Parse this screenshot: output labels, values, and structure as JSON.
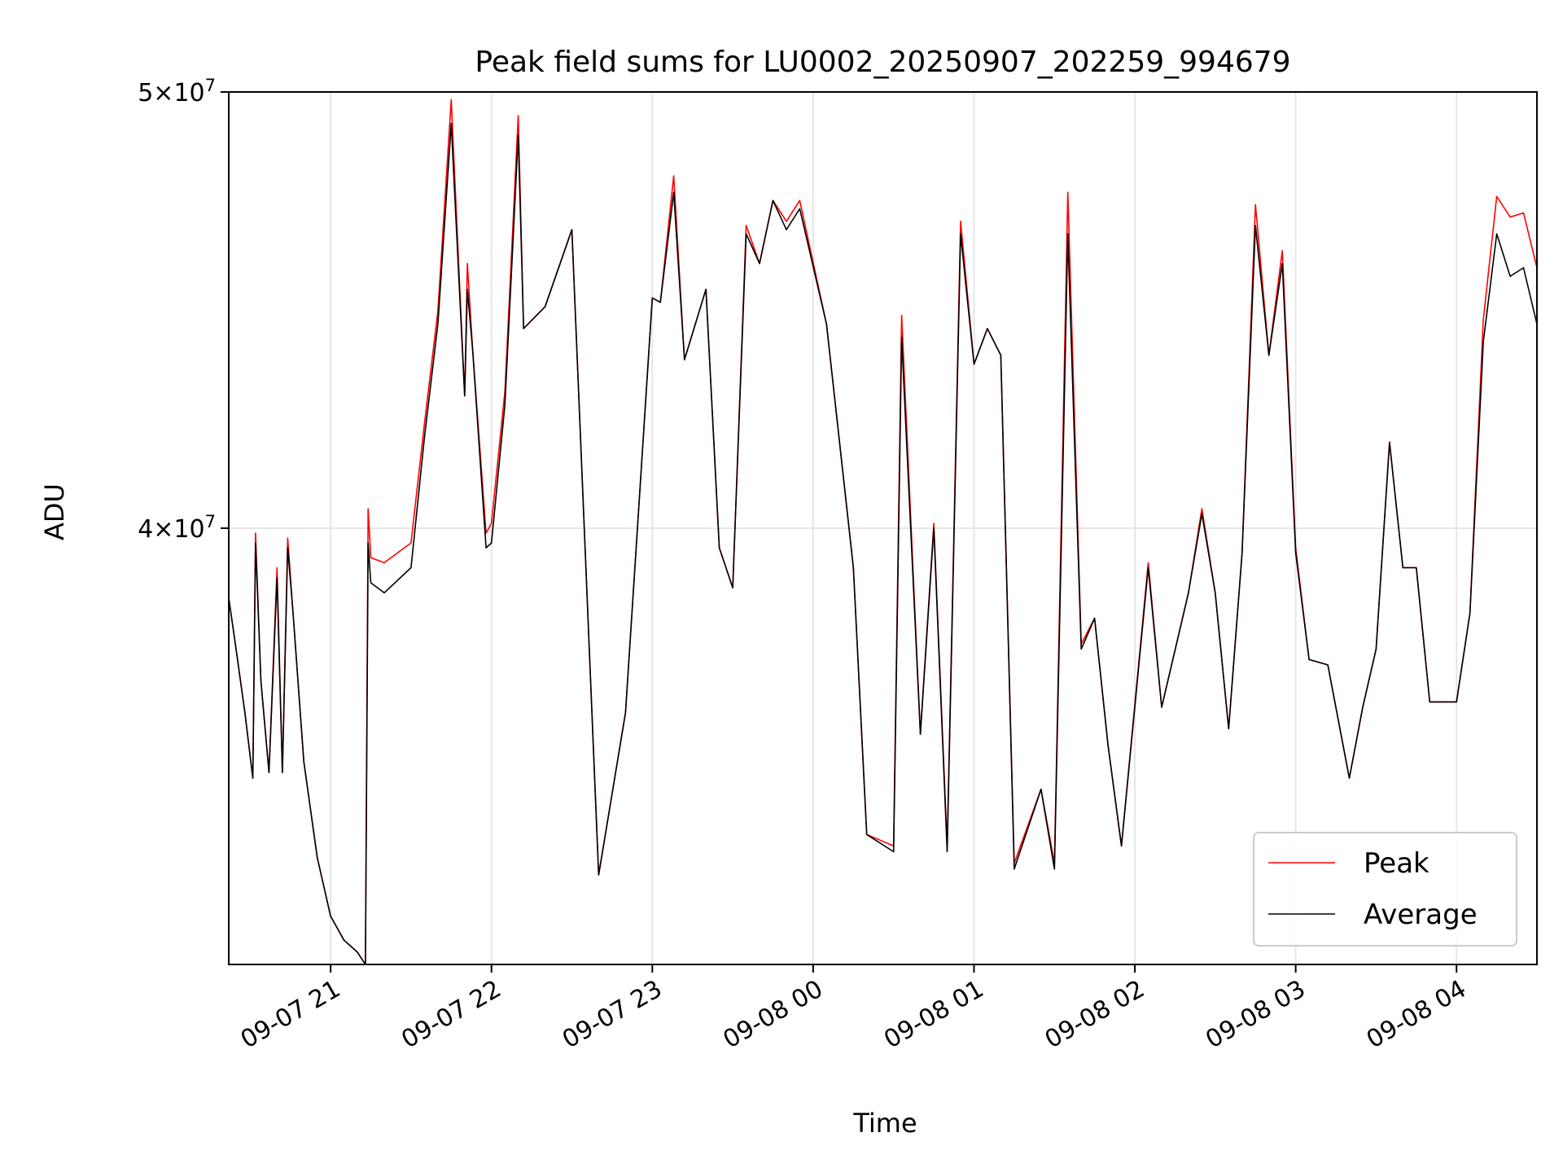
{
  "chart_data": {
    "type": "line",
    "title": "Peak field sums for LU0002_20250907_202259_994679",
    "xlabel": "Time",
    "ylabel": "ADU",
    "x_axis_type": "datetime",
    "xlim": [
      "2025-09-07 20:22",
      "2025-09-08 04:30"
    ],
    "ylim": [
      32000000,
      50000000
    ],
    "yscale": "log",
    "grid": true,
    "legend_position": "lower-right",
    "x_ticks": [
      "09-07 21",
      "09-07 22",
      "09-07 23",
      "09-08 00",
      "09-08 01",
      "09-08 02",
      "09-08 03",
      "09-08 04"
    ],
    "y_ticks": [
      {
        "value": 40000000,
        "mantissa": "4",
        "exponent": "7"
      },
      {
        "value": 50000000,
        "mantissa": "5",
        "exponent": "7"
      }
    ],
    "series": [
      {
        "name": "Peak",
        "color": "#ff0000",
        "x": [
          "2025-09-07 20:22",
          "2025-09-07 20:25",
          "2025-09-07 20:28",
          "2025-09-07 20:31",
          "2025-09-07 20:32",
          "2025-09-07 20:34",
          "2025-09-07 20:37",
          "2025-09-07 20:40",
          "2025-09-07 20:42",
          "2025-09-07 20:44",
          "2025-09-07 20:46",
          "2025-09-07 20:50",
          "2025-09-07 20:55",
          "2025-09-07 21:00",
          "2025-09-07 21:05",
          "2025-09-07 21:10",
          "2025-09-07 21:13",
          "2025-09-07 21:14",
          "2025-09-07 21:15",
          "2025-09-07 21:20",
          "2025-09-07 21:30",
          "2025-09-07 21:35",
          "2025-09-07 21:40",
          "2025-09-07 21:45",
          "2025-09-07 21:50",
          "2025-09-07 21:51",
          "2025-09-07 21:53",
          "2025-09-07 21:58",
          "2025-09-07 22:00",
          "2025-09-07 22:05",
          "2025-09-07 22:10",
          "2025-09-07 22:12",
          "2025-09-07 22:20",
          "2025-09-07 22:30",
          "2025-09-07 22:40",
          "2025-09-07 22:50",
          "2025-09-07 23:00",
          "2025-09-07 23:03",
          "2025-09-07 23:08",
          "2025-09-07 23:12",
          "2025-09-07 23:20",
          "2025-09-07 23:25",
          "2025-09-07 23:30",
          "2025-09-07 23:35",
          "2025-09-07 23:40",
          "2025-09-07 23:45",
          "2025-09-07 23:50",
          "2025-09-07 23:55",
          "2025-09-08 00:05",
          "2025-09-08 00:15",
          "2025-09-08 00:20",
          "2025-09-08 00:30",
          "2025-09-08 00:33",
          "2025-09-08 00:40",
          "2025-09-08 00:45",
          "2025-09-08 00:50",
          "2025-09-08 00:55",
          "2025-09-08 01:00",
          "2025-09-08 01:05",
          "2025-09-08 01:10",
          "2025-09-08 01:15",
          "2025-09-08 01:25",
          "2025-09-08 01:30",
          "2025-09-08 01:35",
          "2025-09-08 01:40",
          "2025-09-08 01:45",
          "2025-09-08 01:50",
          "2025-09-08 01:55",
          "2025-09-08 02:05",
          "2025-09-08 02:10",
          "2025-09-08 02:20",
          "2025-09-08 02:25",
          "2025-09-08 02:30",
          "2025-09-08 02:35",
          "2025-09-08 02:40",
          "2025-09-08 02:45",
          "2025-09-08 02:50",
          "2025-09-08 02:55",
          "2025-09-08 03:00",
          "2025-09-08 03:05",
          "2025-09-08 03:12",
          "2025-09-08 03:20",
          "2025-09-08 03:25",
          "2025-09-08 03:30",
          "2025-09-08 03:35",
          "2025-09-08 03:40",
          "2025-09-08 03:45",
          "2025-09-08 03:50",
          "2025-09-08 04:00",
          "2025-09-08 04:05",
          "2025-09-08 04:10",
          "2025-09-08 04:15",
          "2025-09-08 04:20",
          "2025-09-08 04:25",
          "2025-09-08 04:30"
        ],
        "values": [
          38600000,
          37500000,
          36400000,
          35200000,
          39900000,
          37000000,
          35300000,
          39200000,
          35300000,
          39800000,
          38300000,
          35500000,
          33800000,
          32800000,
          32400000,
          32200000,
          32000000,
          40400000,
          39400000,
          39300000,
          39700000,
          42200000,
          44700000,
          49800000,
          42800000,
          45800000,
          43800000,
          39900000,
          40100000,
          42900000,
          49400000,
          44300000,
          44800000,
          46600000,
          33500000,
          36400000,
          45000000,
          44900000,
          47900000,
          43600000,
          45200000,
          39600000,
          38800000,
          46700000,
          45800000,
          47300000,
          46800000,
          47300000,
          44400000,
          39200000,
          34200000,
          34000000,
          44600000,
          36000000,
          40100000,
          34000000,
          46800000,
          43500000,
          44300000,
          43700000,
          33700000,
          35000000,
          33700000,
          47500000,
          37700000,
          38200000,
          35800000,
          34000000,
          39300000,
          36500000,
          38700000,
          40400000,
          38700000,
          36100000,
          39500000,
          47200000,
          43700000,
          46100000,
          39600000,
          37400000,
          37300000,
          35200000,
          36500000,
          37600000,
          41800000,
          39200000,
          39200000,
          36600000,
          36600000,
          38300000,
          44500000,
          47400000,
          46900000,
          47000000,
          45700000
        ]
      },
      {
        "name": "Average",
        "color": "#000000",
        "x": [
          "2025-09-07 20:22",
          "2025-09-07 20:25",
          "2025-09-07 20:28",
          "2025-09-07 20:31",
          "2025-09-07 20:32",
          "2025-09-07 20:34",
          "2025-09-07 20:37",
          "2025-09-07 20:40",
          "2025-09-07 20:42",
          "2025-09-07 20:44",
          "2025-09-07 20:46",
          "2025-09-07 20:50",
          "2025-09-07 20:55",
          "2025-09-07 21:00",
          "2025-09-07 21:05",
          "2025-09-07 21:10",
          "2025-09-07 21:13",
          "2025-09-07 21:14",
          "2025-09-07 21:15",
          "2025-09-07 21:20",
          "2025-09-07 21:30",
          "2025-09-07 21:35",
          "2025-09-07 21:40",
          "2025-09-07 21:45",
          "2025-09-07 21:50",
          "2025-09-07 21:51",
          "2025-09-07 21:53",
          "2025-09-07 21:58",
          "2025-09-07 22:00",
          "2025-09-07 22:05",
          "2025-09-07 22:10",
          "2025-09-07 22:12",
          "2025-09-07 22:20",
          "2025-09-07 22:30",
          "2025-09-07 22:40",
          "2025-09-07 22:50",
          "2025-09-07 23:00",
          "2025-09-07 23:03",
          "2025-09-07 23:08",
          "2025-09-07 23:12",
          "2025-09-07 23:20",
          "2025-09-07 23:25",
          "2025-09-07 23:30",
          "2025-09-07 23:35",
          "2025-09-07 23:40",
          "2025-09-07 23:45",
          "2025-09-07 23:50",
          "2025-09-07 23:55",
          "2025-09-08 00:05",
          "2025-09-08 00:15",
          "2025-09-08 00:20",
          "2025-09-08 00:30",
          "2025-09-08 00:33",
          "2025-09-08 00:40",
          "2025-09-08 00:45",
          "2025-09-08 00:50",
          "2025-09-08 00:55",
          "2025-09-08 01:00",
          "2025-09-08 01:05",
          "2025-09-08 01:10",
          "2025-09-08 01:15",
          "2025-09-08 01:25",
          "2025-09-08 01:30",
          "2025-09-08 01:35",
          "2025-09-08 01:40",
          "2025-09-08 01:45",
          "2025-09-08 01:50",
          "2025-09-08 01:55",
          "2025-09-08 02:05",
          "2025-09-08 02:10",
          "2025-09-08 02:20",
          "2025-09-08 02:25",
          "2025-09-08 02:30",
          "2025-09-08 02:35",
          "2025-09-08 02:40",
          "2025-09-08 02:45",
          "2025-09-08 02:50",
          "2025-09-08 02:55",
          "2025-09-08 03:00",
          "2025-09-08 03:05",
          "2025-09-08 03:12",
          "2025-09-08 03:20",
          "2025-09-08 03:25",
          "2025-09-08 03:30",
          "2025-09-08 03:35",
          "2025-09-08 03:40",
          "2025-09-08 03:45",
          "2025-09-08 03:50",
          "2025-09-08 04:00",
          "2025-09-08 04:05",
          "2025-09-08 04:10",
          "2025-09-08 04:15",
          "2025-09-08 04:20",
          "2025-09-08 04:25",
          "2025-09-08 04:30"
        ],
        "values": [
          38600000,
          37500000,
          36400000,
          35200000,
          39700000,
          37000000,
          35300000,
          39000000,
          35300000,
          39600000,
          38300000,
          35500000,
          33800000,
          32800000,
          32400000,
          32200000,
          32000000,
          39700000,
          38900000,
          38700000,
          39200000,
          41900000,
          44400000,
          49200000,
          42800000,
          45200000,
          43800000,
          39600000,
          39700000,
          42600000,
          48900000,
          44300000,
          44800000,
          46600000,
          33500000,
          36400000,
          45000000,
          44900000,
          47500000,
          43600000,
          45200000,
          39600000,
          38800000,
          46500000,
          45800000,
          47300000,
          46600000,
          47100000,
          44400000,
          39200000,
          34200000,
          33900000,
          44100000,
          36000000,
          40000000,
          33900000,
          46500000,
          43500000,
          44300000,
          43700000,
          33600000,
          35000000,
          33600000,
          46500000,
          37600000,
          38200000,
          35800000,
          34000000,
          39200000,
          36500000,
          38700000,
          40300000,
          38700000,
          36100000,
          39500000,
          46700000,
          43700000,
          45800000,
          39500000,
          37400000,
          37300000,
          35200000,
          36500000,
          37600000,
          41800000,
          39200000,
          39200000,
          36600000,
          36600000,
          38300000,
          44000000,
          46500000,
          45500000,
          45700000,
          44400000
        ]
      }
    ]
  }
}
